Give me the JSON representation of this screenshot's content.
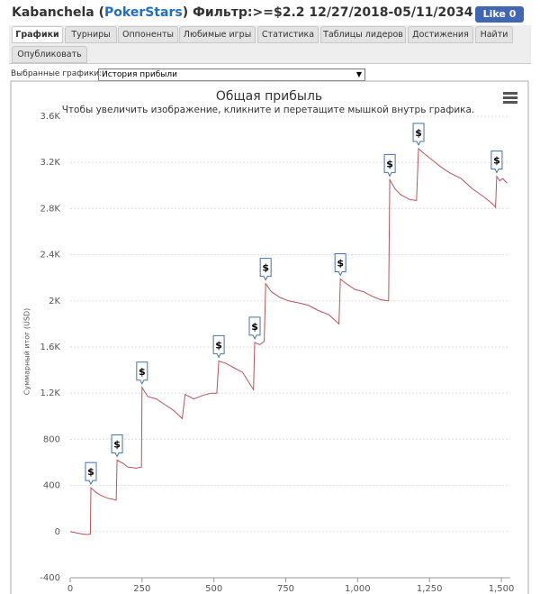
{
  "header": {
    "title_parts": [
      "Kabanchela (",
      "PokerStars",
      ") Фильтр:>=$2.2 12/27/2018-05/11/2034"
    ],
    "like": "Like 0"
  },
  "tabs": [
    "Графики",
    "Турниры",
    "Оппоненты",
    "Любимые игры",
    "Статистика",
    "Таблицы лидеров",
    "Достижения",
    "Найти",
    "Опубликовать"
  ],
  "selector": {
    "label": "Выбранные графики:",
    "value": "История прибыли"
  },
  "chart_data": {
    "type": "line",
    "title": "Общая прибыль",
    "subtitle": "Чтобы увеличить изображение, кликните и перетащите мышкой внутрь графика.",
    "y_label": "Суммарный итог (USD)",
    "color": "#b5545c",
    "grid": true,
    "x": [
      0,
      20,
      40,
      60,
      70,
      72,
      90,
      110,
      130,
      150,
      160,
      163,
      185,
      200,
      230,
      248,
      250,
      270,
      300,
      330,
      360,
      390,
      400,
      430,
      460,
      490,
      510,
      517,
      540,
      570,
      600,
      620,
      638,
      642,
      660,
      675,
      680,
      700,
      730,
      760,
      800,
      830,
      860,
      900,
      935,
      940,
      960,
      990,
      1020,
      1050,
      1080,
      1108,
      1112,
      1130,
      1150,
      1180,
      1205,
      1212,
      1230,
      1260,
      1290,
      1320,
      1360,
      1400,
      1440,
      1470,
      1480,
      1484,
      1495,
      1505,
      1520
    ],
    "values": [
      0,
      -10,
      -20,
      -25,
      -20,
      380,
      340,
      310,
      290,
      280,
      272,
      620,
      590,
      560,
      550,
      560,
      1250,
      1170,
      1150,
      1100,
      1050,
      980,
      1190,
      1150,
      1180,
      1200,
      1200,
      1480,
      1460,
      1420,
      1380,
      1300,
      1230,
      1640,
      1620,
      1650,
      2150,
      2080,
      2030,
      2000,
      1980,
      1960,
      1920,
      1880,
      1800,
      2190,
      2150,
      2100,
      2080,
      2040,
      2010,
      2000,
      3050,
      2970,
      2920,
      2880,
      2870,
      3320,
      3280,
      3220,
      3160,
      3110,
      3060,
      2970,
      2900,
      2840,
      2810,
      3080,
      3040,
      3060,
      3020
    ],
    "markers": [
      {
        "x": 72,
        "y": 380,
        "label": "$"
      },
      {
        "x": 163,
        "y": 620,
        "label": "$"
      },
      {
        "x": 250,
        "y": 1250,
        "label": "$"
      },
      {
        "x": 517,
        "y": 1480,
        "label": "$"
      },
      {
        "x": 642,
        "y": 1640,
        "label": "$"
      },
      {
        "x": 680,
        "y": 2150,
        "label": "$"
      },
      {
        "x": 940,
        "y": 2190,
        "label": "$"
      },
      {
        "x": 1112,
        "y": 3050,
        "label": "$"
      },
      {
        "x": 1212,
        "y": 3320,
        "label": "$"
      },
      {
        "x": 1484,
        "y": 3080,
        "label": "$"
      }
    ],
    "xlim": [
      0,
      1530
    ],
    "ylim": [
      -400,
      3600
    ],
    "xticks": [
      0,
      250,
      500,
      750,
      {
        "value": 1000,
        "label": "1,000"
      },
      {
        "value": 1250,
        "label": "1,250"
      },
      {
        "value": 1500,
        "label": "1,500"
      }
    ],
    "yticks": [
      -400,
      0,
      400,
      800,
      {
        "value": 1200,
        "label": "1.2K"
      },
      {
        "value": 1600,
        "label": "1.6K"
      },
      {
        "value": 2000,
        "label": "2K"
      },
      {
        "value": 2400,
        "label": "2.4K"
      },
      {
        "value": 2800,
        "label": "2.8K"
      },
      {
        "value": 3200,
        "label": "3.2K"
      },
      {
        "value": 3600,
        "label": "3.6K"
      }
    ]
  }
}
